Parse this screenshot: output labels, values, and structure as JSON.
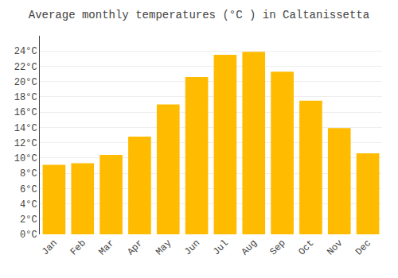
{
  "chart_data": {
    "type": "bar",
    "title": "Average monthly temperatures (°C ) in Caltanissetta",
    "categories": [
      "Jan",
      "Feb",
      "Mar",
      "Apr",
      "May",
      "Jun",
      "Jul",
      "Aug",
      "Sep",
      "Oct",
      "Nov",
      "Dec"
    ],
    "values": [
      9.1,
      9.3,
      10.4,
      12.8,
      17.0,
      20.6,
      23.5,
      23.9,
      21.3,
      17.5,
      13.9,
      10.6
    ],
    "color": "#FFBB00",
    "ylim": [
      0,
      26
    ],
    "yticks": [
      {
        "value": 0,
        "label": "0°C"
      },
      {
        "value": 2,
        "label": "2°C"
      },
      {
        "value": 4,
        "label": "4°C"
      },
      {
        "value": 6,
        "label": "6°C"
      },
      {
        "value": 8,
        "label": "8°C"
      },
      {
        "value": 10,
        "label": "10°C"
      },
      {
        "value": 12,
        "label": "12°C"
      },
      {
        "value": 14,
        "label": "14°C"
      },
      {
        "value": 16,
        "label": "16°C"
      },
      {
        "value": 18,
        "label": "18°C"
      },
      {
        "value": 20,
        "label": "20°C"
      },
      {
        "value": 22,
        "label": "22°C"
      },
      {
        "value": 24,
        "label": "24°C"
      }
    ],
    "grid": true
  }
}
